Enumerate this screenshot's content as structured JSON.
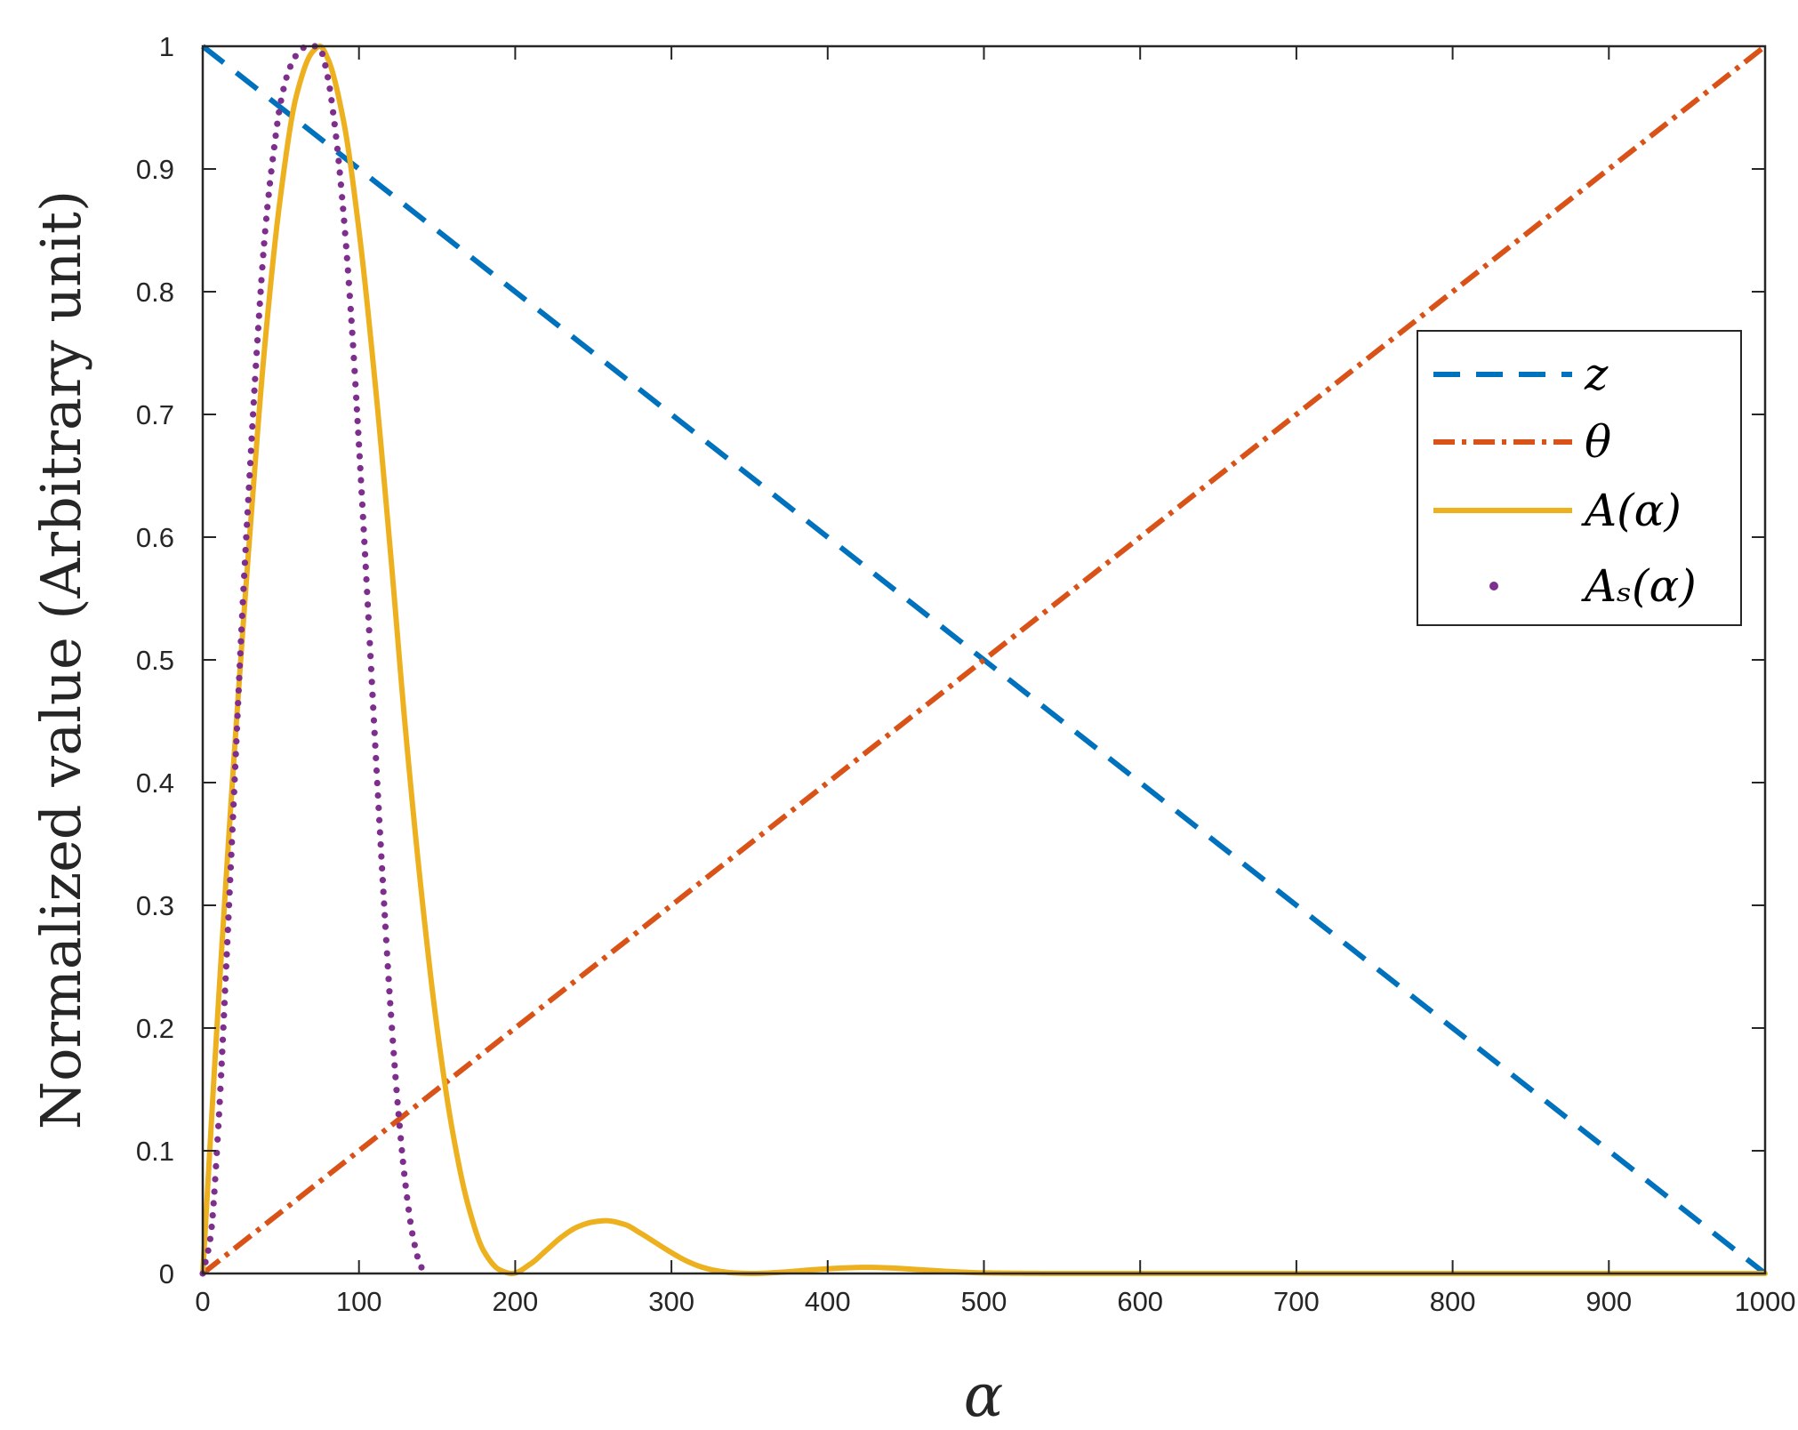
{
  "chart_data": {
    "type": "line",
    "xlabel": "α",
    "ylabel": "Normalized value (Arbitrary unit)",
    "xlim": [
      0,
      1000
    ],
    "ylim": [
      0,
      1
    ],
    "x_ticks": [
      "0",
      "100",
      "200",
      "300",
      "400",
      "500",
      "600",
      "700",
      "800",
      "900",
      "1000"
    ],
    "y_ticks": [
      "0",
      "0.1",
      "0.2",
      "0.3",
      "0.4",
      "0.5",
      "0.6",
      "0.7",
      "0.8",
      "0.9",
      "1"
    ],
    "grid": false,
    "legend_position": "right",
    "series": [
      {
        "name": "z",
        "style": "dashed",
        "color": "#0072BD",
        "x": [
          0,
          1000
        ],
        "y": [
          1,
          0
        ]
      },
      {
        "name": "θ",
        "style": "dash-dot",
        "color": "#D95319",
        "x": [
          0,
          1000
        ],
        "y": [
          0,
          1
        ]
      },
      {
        "name": "A(α)",
        "style": "solid",
        "color": "#EDB120",
        "x": [
          0,
          10,
          20,
          30,
          40,
          50,
          60,
          70,
          75,
          80,
          90,
          100,
          110,
          120,
          130,
          140,
          150,
          160,
          170,
          180,
          190,
          198,
          210,
          220,
          230,
          240,
          250,
          258,
          270,
          280,
          290,
          300,
          310,
          320,
          330,
          340,
          352,
          370,
          390,
          410,
          425,
          440,
          460,
          480,
          500,
          550,
          600,
          700,
          800,
          900,
          1000
        ],
        "y": [
          0,
          0.22,
          0.42,
          0.6,
          0.76,
          0.88,
          0.96,
          0.995,
          1.0,
          0.99,
          0.94,
          0.85,
          0.73,
          0.59,
          0.44,
          0.31,
          0.2,
          0.115,
          0.055,
          0.018,
          0.003,
          0.0,
          0.008,
          0.019,
          0.03,
          0.038,
          0.042,
          0.043,
          0.04,
          0.033,
          0.025,
          0.017,
          0.01,
          0.005,
          0.002,
          0.0005,
          0.0,
          0.001,
          0.003,
          0.0045,
          0.005,
          0.0045,
          0.003,
          0.0015,
          0.0005,
          0.0,
          0.0,
          0.0,
          0.0,
          0.0,
          0.0
        ]
      },
      {
        "name": "Aₛ(α)",
        "style": "dotted",
        "color": "#7E2F8E",
        "x": [
          0,
          5,
          10,
          15,
          20,
          25,
          30,
          35,
          40,
          45,
          50,
          55,
          60,
          65,
          70,
          72.5,
          75,
          80,
          85,
          90,
          95,
          100,
          105,
          110,
          115,
          120,
          125,
          130,
          135,
          140,
          145
        ],
        "y": [
          0,
          0.03,
          0.12,
          0.25,
          0.39,
          0.53,
          0.65,
          0.76,
          0.85,
          0.91,
          0.955,
          0.98,
          0.993,
          0.999,
          1.0,
          1.0,
          0.998,
          0.975,
          0.93,
          0.865,
          0.78,
          0.675,
          0.56,
          0.44,
          0.325,
          0.22,
          0.135,
          0.07,
          0.027,
          0.005,
          0.0
        ]
      }
    ]
  }
}
